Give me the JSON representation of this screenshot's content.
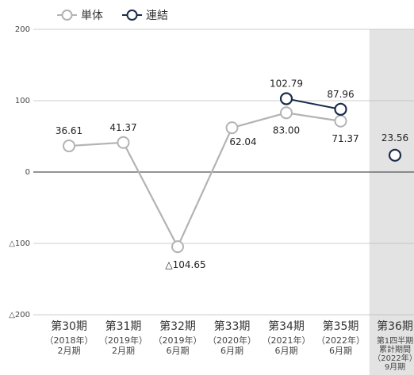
{
  "chart_data": {
    "type": "line",
    "title": "",
    "xlabel": "",
    "ylabel": "",
    "ylim": [
      -200,
      200
    ],
    "yticks": [
      {
        "value": 200,
        "label": "200"
      },
      {
        "value": 100,
        "label": "100"
      },
      {
        "value": 0,
        "label": "0"
      },
      {
        "value": -100,
        "label": "△100"
      },
      {
        "value": -200,
        "label": "△200"
      }
    ],
    "categories": [
      {
        "main": "第30期",
        "sub": [
          "（2018年）",
          "2月期"
        ]
      },
      {
        "main": "第31期",
        "sub": [
          "（2019年）",
          "2月期"
        ]
      },
      {
        "main": "第32期",
        "sub": [
          "（2019年）",
          "6月期"
        ]
      },
      {
        "main": "第33期",
        "sub": [
          "（2020年）",
          "6月期"
        ]
      },
      {
        "main": "第34期",
        "sub": [
          "（2021年）",
          "6月期"
        ]
      },
      {
        "main": "第35期",
        "sub": [
          "（2022年）",
          "6月期"
        ]
      },
      {
        "main": "第36期",
        "sub": [
          "第1四半期",
          "累計期間",
          "（2022年）",
          "9月期"
        ]
      }
    ],
    "highlight_category": 6,
    "legend_position": "top-left",
    "series": [
      {
        "name": "単体",
        "color": "#b3b3b3",
        "values": [
          36.61,
          41.37,
          -104.65,
          62.04,
          83.0,
          71.37,
          null
        ],
        "labels": [
          "36.61",
          "41.37",
          "△104.65",
          "62.04",
          "83.00",
          "71.37",
          ""
        ]
      },
      {
        "name": "連結",
        "color": "#1c2c4c",
        "values": [
          null,
          null,
          null,
          null,
          102.79,
          87.96,
          23.56
        ],
        "labels": [
          "",
          "",
          "",
          "",
          "102.79",
          "87.96",
          "23.56"
        ]
      }
    ]
  }
}
